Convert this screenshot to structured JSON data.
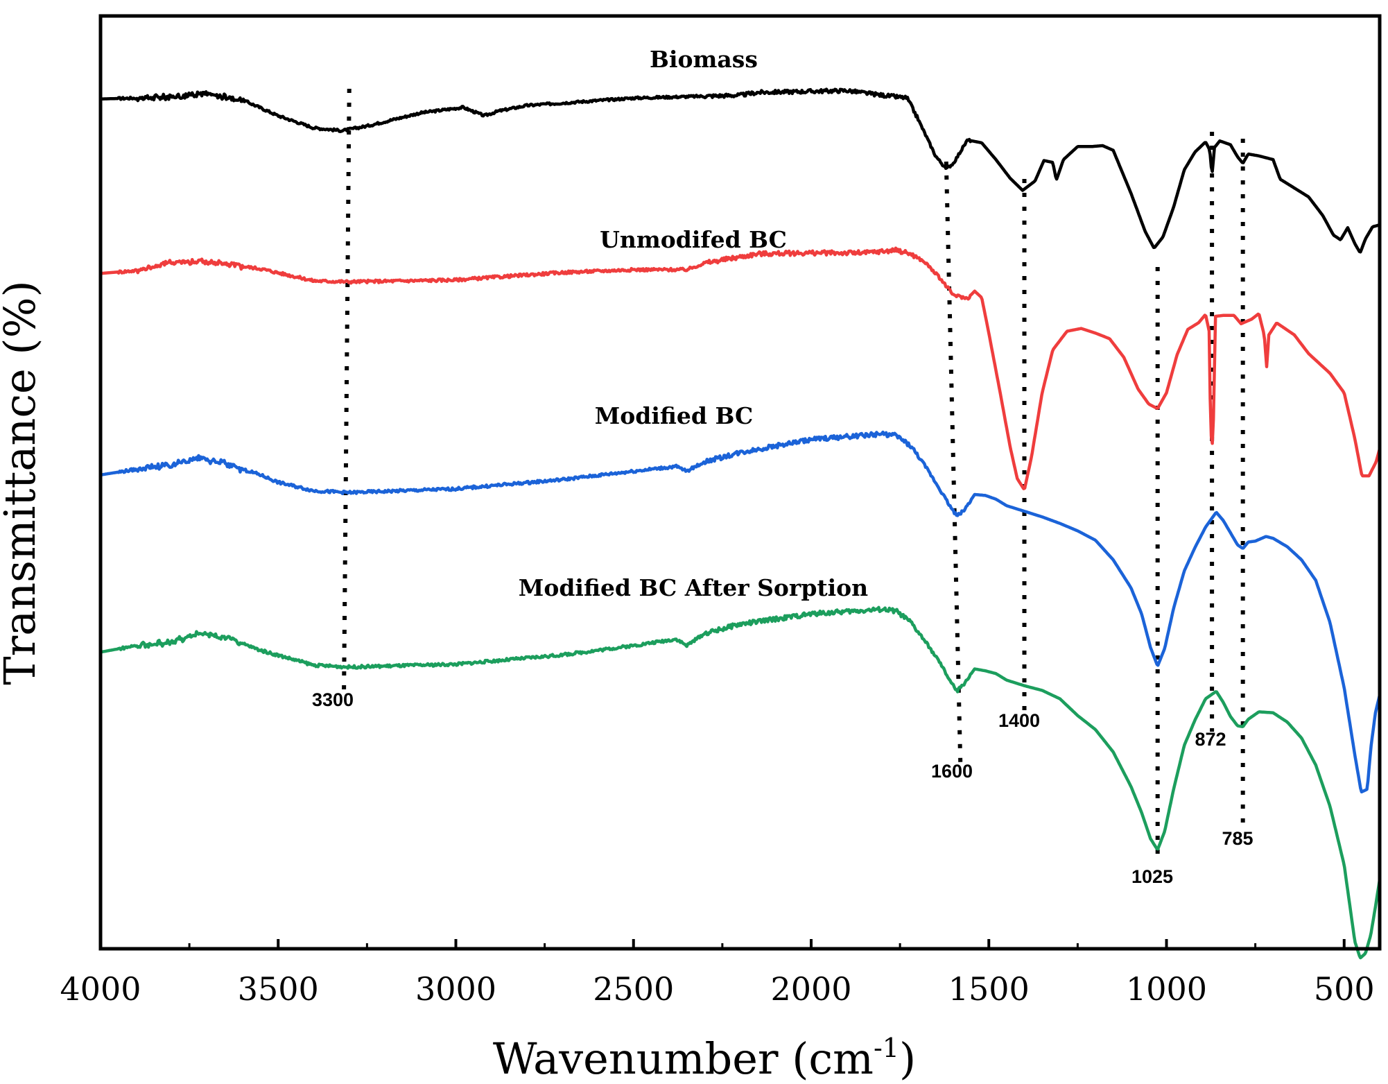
{
  "chart_data": {
    "type": "line",
    "title": "",
    "xlabel": "Wavenumber (cm",
    "xlabel_sup": "-1",
    "xlabel_close": ")",
    "ylabel": "Transmittance (%)",
    "xlim": [
      4000,
      400
    ],
    "ylim": [
      0,
      100
    ],
    "xticks": [
      4000,
      3500,
      3000,
      2500,
      2000,
      1500,
      1000,
      500
    ],
    "grid": false,
    "series": [
      {
        "name": "Biomass",
        "color": "#000000",
        "points": [
          [
            4000,
            91.1
          ],
          [
            3800,
            91.3
          ],
          [
            3720,
            91.7
          ],
          [
            3600,
            91
          ],
          [
            3500,
            89.3
          ],
          [
            3400,
            88
          ],
          [
            3320,
            87.7
          ],
          [
            3250,
            88.2
          ],
          [
            3100,
            89.6
          ],
          [
            2980,
            90.2
          ],
          [
            2920,
            89.3
          ],
          [
            2880,
            89.8
          ],
          [
            2800,
            90.4
          ],
          [
            2500,
            91.2
          ],
          [
            2200,
            91.5
          ],
          [
            2150,
            91.8
          ],
          [
            1900,
            92
          ],
          [
            1800,
            91.5
          ],
          [
            1730,
            91.2
          ],
          [
            1700,
            89
          ],
          [
            1650,
            85
          ],
          [
            1620,
            83.6
          ],
          [
            1600,
            84.2
          ],
          [
            1560,
            86.7
          ],
          [
            1520,
            86.4
          ],
          [
            1480,
            84.6
          ],
          [
            1440,
            82.6
          ],
          [
            1405,
            81.3
          ],
          [
            1370,
            82.3
          ],
          [
            1345,
            84.5
          ],
          [
            1320,
            84.3
          ],
          [
            1310,
            82.4
          ],
          [
            1290,
            84.6
          ],
          [
            1250,
            86
          ],
          [
            1210,
            86
          ],
          [
            1180,
            86.1
          ],
          [
            1150,
            85.6
          ],
          [
            1100,
            81
          ],
          [
            1060,
            76.9
          ],
          [
            1035,
            75.1
          ],
          [
            1010,
            76.3
          ],
          [
            980,
            79.5
          ],
          [
            950,
            83.5
          ],
          [
            920,
            85.4
          ],
          [
            890,
            86.5
          ],
          [
            878,
            85.6
          ],
          [
            872,
            82.9
          ],
          [
            865,
            85.9
          ],
          [
            850,
            86.6
          ],
          [
            820,
            86.2
          ],
          [
            800,
            84.9
          ],
          [
            785,
            84.2
          ],
          [
            770,
            85.2
          ],
          [
            740,
            85
          ],
          [
            700,
            84.6
          ],
          [
            680,
            82.5
          ],
          [
            600,
            80.6
          ],
          [
            560,
            78.6
          ],
          [
            530,
            76.5
          ],
          [
            510,
            76
          ],
          [
            490,
            77.3
          ],
          [
            470,
            75.6
          ],
          [
            455,
            74.6
          ],
          [
            440,
            76.1
          ],
          [
            420,
            77.4
          ],
          [
            400,
            77.6
          ]
        ]
      },
      {
        "name": "Unmodifed BC",
        "color": "#ef3d3d",
        "points": [
          [
            4000,
            72.4
          ],
          [
            3900,
            72.7
          ],
          [
            3800,
            73.6
          ],
          [
            3720,
            73.7
          ],
          [
            3650,
            73.4
          ],
          [
            3550,
            72.9
          ],
          [
            3400,
            71.6
          ],
          [
            3300,
            71.5
          ],
          [
            3000,
            71.7
          ],
          [
            2700,
            72.5
          ],
          [
            2500,
            72.8
          ],
          [
            2350,
            72.8
          ],
          [
            2300,
            73.5
          ],
          [
            2150,
            74.5
          ],
          [
            2000,
            74.6
          ],
          [
            1850,
            74.6
          ],
          [
            1760,
            74.9
          ],
          [
            1720,
            74.5
          ],
          [
            1680,
            73.6
          ],
          [
            1640,
            72
          ],
          [
            1600,
            70.1
          ],
          [
            1560,
            69.7
          ],
          [
            1540,
            70.5
          ],
          [
            1520,
            69.8
          ],
          [
            1500,
            66
          ],
          [
            1470,
            60
          ],
          [
            1440,
            53.8
          ],
          [
            1420,
            50.4
          ],
          [
            1400,
            49.2
          ],
          [
            1380,
            52.7
          ],
          [
            1350,
            59.6
          ],
          [
            1320,
            64.2
          ],
          [
            1280,
            66.2
          ],
          [
            1240,
            66.5
          ],
          [
            1200,
            66
          ],
          [
            1160,
            65.4
          ],
          [
            1120,
            63.4
          ],
          [
            1080,
            60
          ],
          [
            1050,
            58.4
          ],
          [
            1025,
            57.9
          ],
          [
            1000,
            59.6
          ],
          [
            970,
            63.7
          ],
          [
            940,
            66.4
          ],
          [
            910,
            67.1
          ],
          [
            890,
            68
          ],
          [
            880,
            66.2
          ],
          [
            876,
            56.6
          ],
          [
            872,
            53.3
          ],
          [
            868,
            56.8
          ],
          [
            862,
            67.8
          ],
          [
            840,
            67.9
          ],
          [
            810,
            67.9
          ],
          [
            790,
            67
          ],
          [
            760,
            67.5
          ],
          [
            740,
            68.1
          ],
          [
            725,
            65.8
          ],
          [
            718,
            62.4
          ],
          [
            712,
            65.8
          ],
          [
            690,
            67.1
          ],
          [
            640,
            65.8
          ],
          [
            600,
            63.8
          ],
          [
            540,
            61.7
          ],
          [
            500,
            59.6
          ],
          [
            470,
            54.7
          ],
          [
            450,
            50.7
          ],
          [
            430,
            50.7
          ],
          [
            410,
            52.2
          ],
          [
            400,
            53.6
          ]
        ]
      },
      {
        "name": "Modified BC",
        "color": "#1b63d8",
        "points": [
          [
            4000,
            50.8
          ],
          [
            3900,
            51.4
          ],
          [
            3800,
            51.9
          ],
          [
            3720,
            52.6
          ],
          [
            3650,
            52
          ],
          [
            3550,
            50.8
          ],
          [
            3500,
            50
          ],
          [
            3400,
            49.1
          ],
          [
            3300,
            48.9
          ],
          [
            3000,
            49.3
          ],
          [
            2700,
            50.3
          ],
          [
            2500,
            51.2
          ],
          [
            2380,
            51.7
          ],
          [
            2350,
            51.2
          ],
          [
            2300,
            52.2
          ],
          [
            2200,
            53.2
          ],
          [
            2000,
            54.6
          ],
          [
            1800,
            55.2
          ],
          [
            1760,
            55
          ],
          [
            1720,
            53.9
          ],
          [
            1680,
            51.8
          ],
          [
            1640,
            49.4
          ],
          [
            1610,
            47.5
          ],
          [
            1590,
            46.4
          ],
          [
            1570,
            47
          ],
          [
            1540,
            48.7
          ],
          [
            1510,
            48.6
          ],
          [
            1480,
            48.2
          ],
          [
            1450,
            47.5
          ],
          [
            1400,
            46.9
          ],
          [
            1350,
            46.3
          ],
          [
            1300,
            45.6
          ],
          [
            1250,
            44.8
          ],
          [
            1200,
            43.8
          ],
          [
            1150,
            41.7
          ],
          [
            1100,
            38.7
          ],
          [
            1070,
            35.9
          ],
          [
            1045,
            32.3
          ],
          [
            1025,
            30.3
          ],
          [
            1005,
            32.2
          ],
          [
            980,
            36.5
          ],
          [
            950,
            40.5
          ],
          [
            920,
            43
          ],
          [
            890,
            45.2
          ],
          [
            860,
            46.8
          ],
          [
            840,
            45.9
          ],
          [
            820,
            44.6
          ],
          [
            800,
            43.3
          ],
          [
            785,
            42.9
          ],
          [
            770,
            43.6
          ],
          [
            750,
            43.7
          ],
          [
            720,
            44.2
          ],
          [
            700,
            44
          ],
          [
            660,
            43.1
          ],
          [
            620,
            41.7
          ],
          [
            580,
            39.5
          ],
          [
            540,
            35
          ],
          [
            500,
            28
          ],
          [
            470,
            20.8
          ],
          [
            452,
            16.8
          ],
          [
            435,
            17.1
          ],
          [
            425,
            21.5
          ],
          [
            412,
            25.3
          ],
          [
            400,
            27.2
          ]
        ]
      },
      {
        "name": "Modified BC After Sorption",
        "color": "#1c9e5d",
        "points": [
          [
            4000,
            31.8
          ],
          [
            3900,
            32.5
          ],
          [
            3800,
            32.9
          ],
          [
            3720,
            33.8
          ],
          [
            3650,
            33.4
          ],
          [
            3550,
            32
          ],
          [
            3400,
            30.4
          ],
          [
            3300,
            30.2
          ],
          [
            3000,
            30.5
          ],
          [
            2700,
            31.5
          ],
          [
            2500,
            32.5
          ],
          [
            2380,
            33.2
          ],
          [
            2350,
            32.5
          ],
          [
            2300,
            33.8
          ],
          [
            2200,
            34.8
          ],
          [
            2000,
            35.9
          ],
          [
            1800,
            36.4
          ],
          [
            1760,
            36.2
          ],
          [
            1720,
            35
          ],
          [
            1680,
            33
          ],
          [
            1640,
            30.8
          ],
          [
            1610,
            28.8
          ],
          [
            1590,
            27.6
          ],
          [
            1570,
            28.4
          ],
          [
            1540,
            30
          ],
          [
            1510,
            29.8
          ],
          [
            1480,
            29.5
          ],
          [
            1450,
            28.8
          ],
          [
            1400,
            28.2
          ],
          [
            1350,
            27.7
          ],
          [
            1300,
            26.8
          ],
          [
            1250,
            25
          ],
          [
            1200,
            23.5
          ],
          [
            1150,
            21.1
          ],
          [
            1100,
            17.4
          ],
          [
            1070,
            14.6
          ],
          [
            1045,
            11.8
          ],
          [
            1025,
            10.6
          ],
          [
            1005,
            12.6
          ],
          [
            980,
            17.1
          ],
          [
            950,
            21.8
          ],
          [
            920,
            24.5
          ],
          [
            890,
            26.8
          ],
          [
            860,
            27.6
          ],
          [
            840,
            26.4
          ],
          [
            820,
            24.9
          ],
          [
            800,
            23.9
          ],
          [
            785,
            23.8
          ],
          [
            770,
            24.6
          ],
          [
            740,
            25.4
          ],
          [
            700,
            25.3
          ],
          [
            660,
            24.3
          ],
          [
            620,
            22.6
          ],
          [
            580,
            19.7
          ],
          [
            540,
            15.3
          ],
          [
            500,
            9
          ],
          [
            470,
            0.8
          ],
          [
            455,
            -1
          ],
          [
            440,
            -0.5
          ],
          [
            425,
            1.5
          ],
          [
            412,
            4.5
          ],
          [
            400,
            7.4
          ]
        ]
      }
    ],
    "peaks": [
      3300,
      1600,
      1400,
      1025,
      872,
      785
    ],
    "peak_labels": [
      "3300",
      "1600",
      "1400",
      "1025",
      "872",
      "785"
    ]
  }
}
